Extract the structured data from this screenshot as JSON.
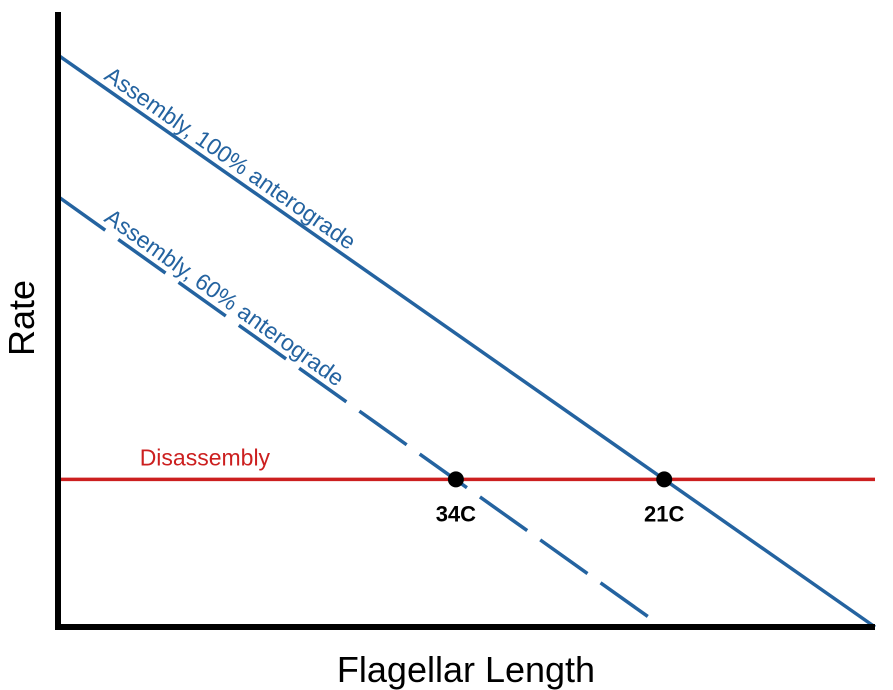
{
  "chart_data": {
    "type": "line",
    "title": "",
    "xlabel": "Flagellar Length",
    "ylabel": "Rate",
    "xlim": [
      0,
      10
    ],
    "ylim": [
      0,
      10
    ],
    "grid": false,
    "legend": "none",
    "ticks": false,
    "series": [
      {
        "name": "Assembly, 100% anterograde",
        "style": "solid",
        "color": "#2463a0",
        "x": [
          0,
          10
        ],
        "y": [
          9.3,
          0
        ]
      },
      {
        "name": "Assembly, 60% anterograde",
        "style": "dashed",
        "color": "#2463a0",
        "x": [
          0,
          7.4
        ],
        "y": [
          7.0,
          0
        ]
      },
      {
        "name": "Disassembly",
        "style": "solid",
        "color": "#cc1f1f",
        "x": [
          0,
          10
        ],
        "y": [
          2.4,
          2.4
        ]
      }
    ],
    "points": [
      {
        "label": "34C",
        "x": 4.87,
        "y": 2.4
      },
      {
        "label": "21C",
        "x": 7.42,
        "y": 2.4
      }
    ]
  }
}
